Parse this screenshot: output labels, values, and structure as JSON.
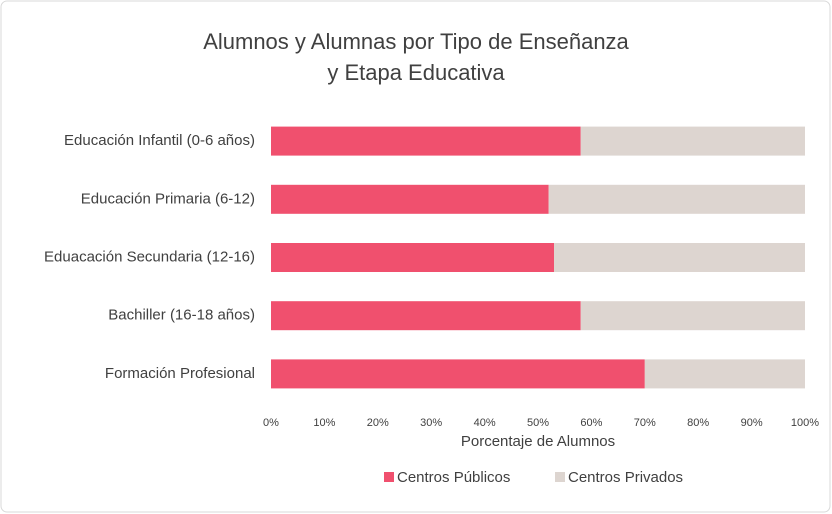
{
  "chart_data": {
    "type": "stacked-barh",
    "title": "Alumnos y Alumnas por Tipo de Enseñanza\ny Etapa Educativa",
    "categories": [
      "Educación Infantil (0-6 años)",
      "Educación Primaria (6-12)",
      "Eduacación Secundaria (12-16)",
      "Bachiller (16-18 años)",
      "Formación Profesional"
    ],
    "series": [
      {
        "name": "Centros Públicos",
        "color": "#f0506e",
        "values": [
          58,
          52,
          53,
          58,
          70
        ]
      },
      {
        "name": "Centros Privados",
        "color": "#ddd5d0",
        "values": [
          42,
          48,
          47,
          42,
          30
        ]
      }
    ],
    "xlim": [
      0,
      100
    ],
    "xticks": [
      {
        "value": 0,
        "label": "0%"
      },
      {
        "value": 10,
        "label": "10%"
      },
      {
        "value": 20,
        "label": "20%"
      },
      {
        "value": 30,
        "label": "30%"
      },
      {
        "value": 40,
        "label": "40%"
      },
      {
        "value": 50,
        "label": "50%"
      },
      {
        "value": 60,
        "label": "60%"
      },
      {
        "value": 70,
        "label": "70%"
      },
      {
        "value": 80,
        "label": "80%"
      },
      {
        "value": 90,
        "label": "90%"
      },
      {
        "value": 100,
        "label": "100%"
      }
    ],
    "xlabel": "Porcentaje de Alumnos",
    "grid": false,
    "legend": "bottom"
  }
}
